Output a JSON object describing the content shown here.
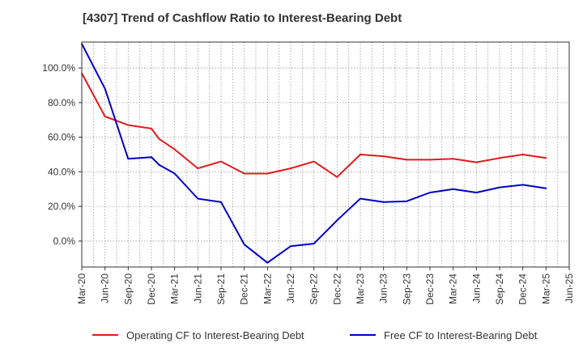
{
  "chart_data": {
    "type": "line",
    "title": "[4307]  Trend of Cashflow Ratio to Interest-Bearing Debt",
    "xlabel": "",
    "ylabel": "",
    "x_ticks": [
      "Mar-20",
      "Jun-20",
      "Sep-20",
      "Dec-20",
      "Mar-21",
      "Jun-21",
      "Sep-21",
      "Dec-21",
      "Mar-22",
      "Jun-22",
      "Sep-22",
      "Dec-22",
      "Mar-23",
      "Jun-23",
      "Sep-23",
      "Dec-23",
      "Mar-24",
      "Jun-24",
      "Sep-24",
      "Dec-24",
      "Mar-25",
      "Jun-25"
    ],
    "y_ticks": [
      "0.0%",
      "20.0%",
      "40.0%",
      "60.0%",
      "80.0%",
      "100.0%"
    ],
    "y_tick_values": [
      0,
      20,
      40,
      60,
      80,
      100
    ],
    "ylim": [
      -15,
      115
    ],
    "grid": true,
    "legend_position": "bottom",
    "series": [
      {
        "name": "Operating CF to Interest-Bearing Debt",
        "color": "#e31a1c",
        "points": [
          [
            "Mar-20",
            97
          ],
          [
            "Jun-20",
            72
          ],
          [
            "Sep-20",
            67
          ],
          [
            "Dec-20",
            65
          ],
          [
            "Jan-21",
            59
          ],
          [
            "Mar-21",
            53
          ],
          [
            "Jun-21",
            42
          ],
          [
            "Sep-21",
            46
          ],
          [
            "Dec-21",
            39
          ],
          [
            "Mar-22",
            39
          ],
          [
            "Jun-22",
            42
          ],
          [
            "Sep-22",
            46
          ],
          [
            "Dec-22",
            37
          ],
          [
            "Mar-23",
            50
          ],
          [
            "Jun-23",
            49
          ],
          [
            "Sep-23",
            47
          ],
          [
            "Dec-23",
            47
          ],
          [
            "Mar-24",
            47.5
          ],
          [
            "Jun-24",
            45.5
          ],
          [
            "Sep-24",
            48
          ],
          [
            "Dec-24",
            50
          ],
          [
            "Mar-25",
            48
          ]
        ]
      },
      {
        "name": "Free CF to Interest-Bearing Debt",
        "color": "#0000cc",
        "points": [
          [
            "Mar-20",
            114
          ],
          [
            "Jun-20",
            88
          ],
          [
            "Sep-20",
            47.5
          ],
          [
            "Dec-20",
            48.5
          ],
          [
            "Jan-21",
            44
          ],
          [
            "Mar-21",
            39
          ],
          [
            "Jun-21",
            24.5
          ],
          [
            "Sep-21",
            22.5
          ],
          [
            "Dec-21",
            -2
          ],
          [
            "Mar-22",
            -12.5
          ],
          [
            "Jun-22",
            -3
          ],
          [
            "Sep-22",
            -1.5
          ],
          [
            "Dec-22",
            12
          ],
          [
            "Mar-23",
            24.5
          ],
          [
            "Jun-23",
            22.5
          ],
          [
            "Sep-23",
            23
          ],
          [
            "Dec-23",
            28
          ],
          [
            "Mar-24",
            30
          ],
          [
            "Jun-24",
            28
          ],
          [
            "Sep-24",
            31
          ],
          [
            "Dec-24",
            32.5
          ],
          [
            "Mar-25",
            30.5
          ]
        ]
      }
    ]
  }
}
